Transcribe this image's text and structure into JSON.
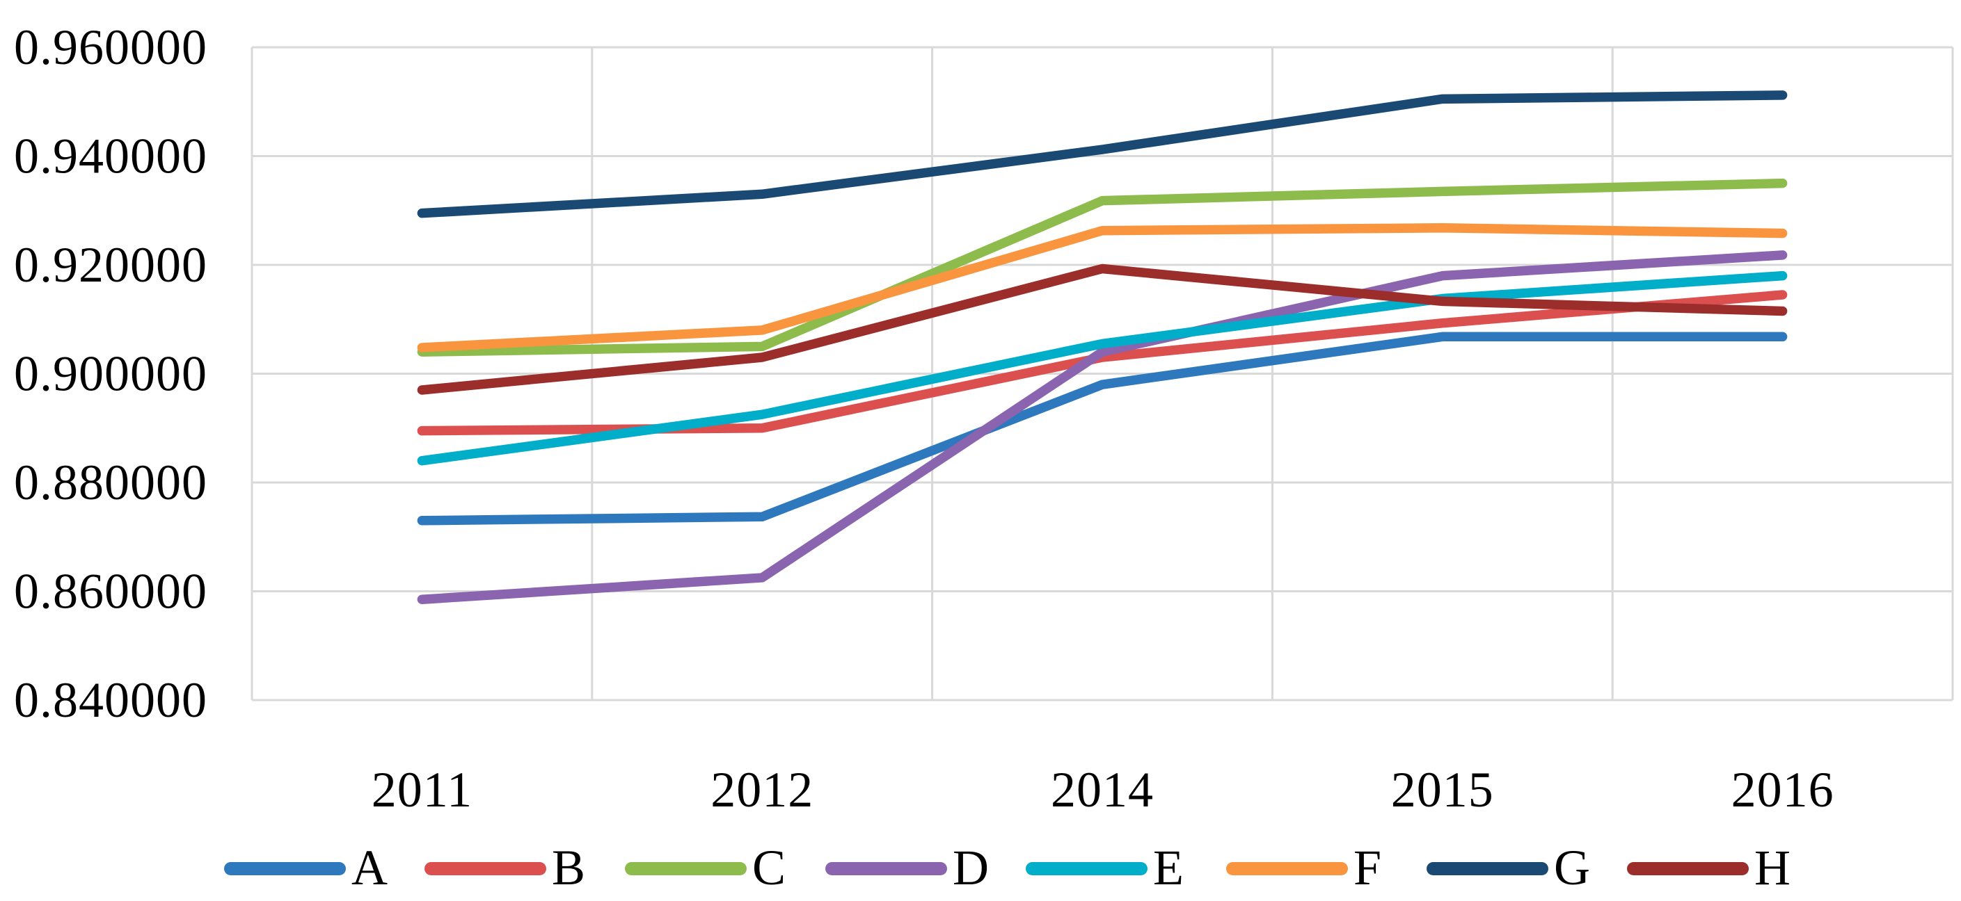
{
  "chart_data": {
    "type": "line",
    "categories": [
      "2011",
      "2012",
      "2014",
      "2015",
      "2016"
    ],
    "series": [
      {
        "name": "A",
        "color": "#2E79BD",
        "values": [
          0.873,
          0.8737,
          0.898,
          0.9068,
          0.9068
        ]
      },
      {
        "name": "B",
        "color": "#DB4F4F",
        "values": [
          0.8895,
          0.89,
          0.903,
          0.9093,
          0.9145
        ]
      },
      {
        "name": "C",
        "color": "#8DBB4C",
        "values": [
          0.904,
          0.905,
          0.9318,
          0.9335,
          0.935
        ]
      },
      {
        "name": "D",
        "color": "#8A64AE",
        "values": [
          0.8585,
          0.8625,
          0.904,
          0.918,
          0.9218
        ]
      },
      {
        "name": "E",
        "color": "#00AEC9",
        "values": [
          0.884,
          0.8925,
          0.9055,
          0.9138,
          0.918
        ]
      },
      {
        "name": "F",
        "color": "#F9953F",
        "values": [
          0.9048,
          0.908,
          0.9263,
          0.9268,
          0.9258
        ]
      },
      {
        "name": "G",
        "color": "#1A4A73",
        "values": [
          0.9295,
          0.933,
          0.9412,
          0.9505,
          0.9512
        ]
      },
      {
        "name": "H",
        "color": "#9B2D2B",
        "values": [
          0.897,
          0.903,
          0.9193,
          0.9133,
          0.9115
        ]
      }
    ],
    "title": "",
    "xlabel": "",
    "ylabel": "",
    "ylim": [
      0.84,
      0.96
    ],
    "y_tick_step": 0.02,
    "y_tick_labels": [
      "0.840000",
      "0.860000",
      "0.880000",
      "0.900000",
      "0.920000",
      "0.940000",
      "0.960000"
    ],
    "grid": true,
    "legend_position": "bottom",
    "legend_labels": [
      "A",
      "B",
      "C",
      "D",
      "E",
      "F",
      "G",
      "H"
    ]
  },
  "styles": {
    "grid_color": "#D9D9D9",
    "text_color": "#000000",
    "background": "#FFFFFF",
    "line_width": 13.5
  }
}
